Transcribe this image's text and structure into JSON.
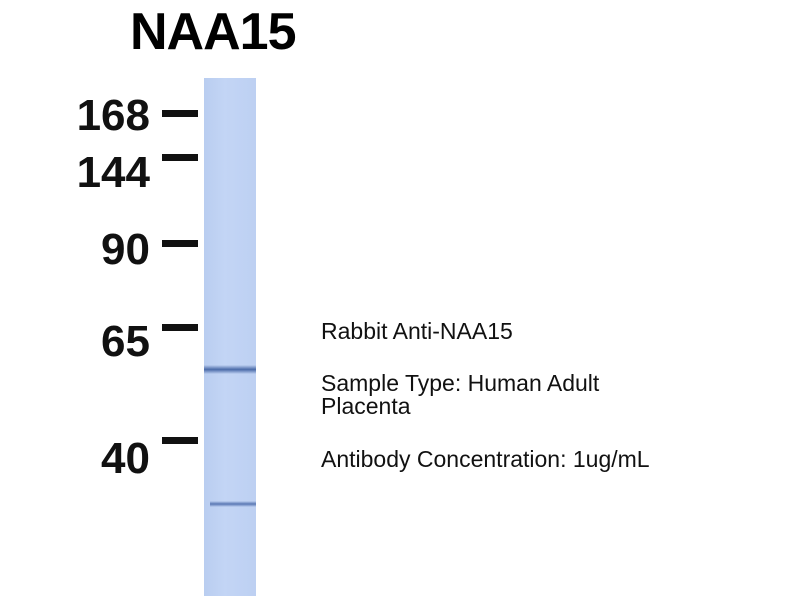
{
  "title": "NAA15",
  "markers": [
    {
      "label": "168"
    },
    {
      "label": "144"
    },
    {
      "label": "90"
    },
    {
      "label": "65"
    },
    {
      "label": "40"
    }
  ],
  "lane_color": "#c0d3f4",
  "band_color": "#4a6aa8",
  "info": {
    "antibody": "Rabbit Anti-NAA15",
    "sample_line1": "Sample Type: Human Adult",
    "sample_line2": "Placenta",
    "concentration": "Antibody Concentration: 1ug/mL"
  }
}
